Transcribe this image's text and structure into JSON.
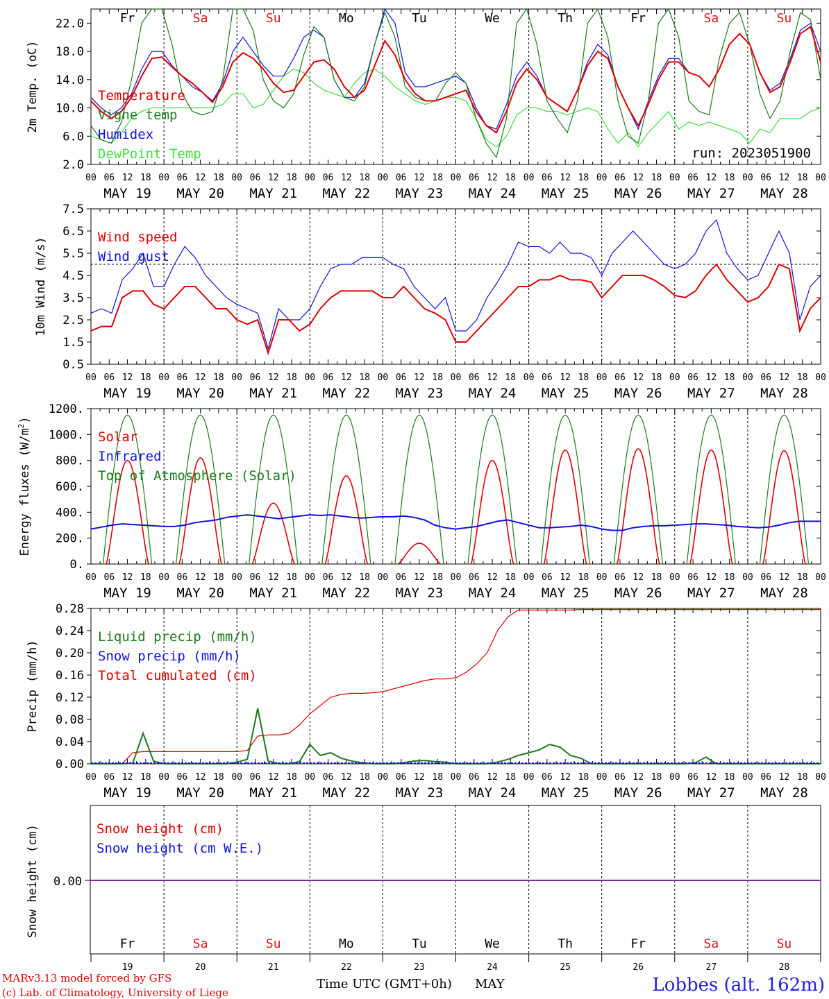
{
  "days": [
    "19",
    "20",
    "21",
    "22",
    "23",
    "24",
    "25",
    "26",
    "27",
    "28"
  ],
  "day_labels": [
    "MAY 19",
    "MAY 20",
    "MAY 21",
    "MAY 22",
    "MAY 23",
    "MAY 24",
    "MAY 25",
    "MAY 26",
    "MAY 27",
    "MAY 28"
  ],
  "weekdays": [
    "Fr",
    "Sa",
    "Su",
    "Mo",
    "Tu",
    "We",
    "Th",
    "Fr",
    "Sa",
    "Su"
  ],
  "weekend_color": "#e01010",
  "weekday_color": "#000000",
  "hour_ticks": [
    "00",
    "06",
    "12",
    "18"
  ],
  "x_end_tick": "00",
  "run_label": "run: 2023051900",
  "footer": {
    "model": "MARv3.13 model forced by GFS",
    "lab": "(c) Lab. of Climatology, University of Liege",
    "axis_title": "Time UTC (GMT+0h)",
    "month": "MAY",
    "station": "Lobbes (alt. 162m)"
  },
  "chart_data": [
    {
      "type": "line",
      "ylabel": "2m Temp. (oC)",
      "ylim": [
        2.0,
        24.0
      ],
      "yticks": [
        2.0,
        6.0,
        10.0,
        14.0,
        18.0,
        22.0
      ],
      "tick_decimals": 1,
      "x_hours_step": 6,
      "series": [
        {
          "name": "Temperature",
          "color": "#e00000",
          "values": [
            11.0,
            9.5,
            8.5,
            9.5,
            11.5,
            14.5,
            17.0,
            17.2,
            15.8,
            14.5,
            13.5,
            12.2,
            10.8,
            13.0,
            16.5,
            17.8,
            17.0,
            15.5,
            13.5,
            12.2,
            12.5,
            14.5,
            16.5,
            16.8,
            15.5,
            13.0,
            11.5,
            12.5,
            16.0,
            19.5,
            17.5,
            14.0,
            12.0,
            11.0,
            11.0,
            11.5,
            12.0,
            12.5,
            9.5,
            7.5,
            6.5,
            9.5,
            13.5,
            15.5,
            14.0,
            11.5,
            10.5,
            9.5,
            12.5,
            16.0,
            18.0,
            17.0,
            13.0,
            10.0,
            7.5,
            10.5,
            14.0,
            16.5,
            16.5,
            15.0,
            14.5,
            13.0,
            15.5,
            19.0,
            20.5,
            19.0,
            15.0,
            12.2,
            13.0,
            16.5,
            20.5,
            21.5,
            16.5
          ]
        },
        {
          "name": "Vigne temp",
          "color": "#1a7a1a",
          "values": [
            7.5,
            5.5,
            5.0,
            8.0,
            14.0,
            22.0,
            26.0,
            26.0,
            19.0,
            12.0,
            9.5,
            9.0,
            9.5,
            14.0,
            24.0,
            27.0,
            21.0,
            14.0,
            11.0,
            10.0,
            12.0,
            17.5,
            21.5,
            20.0,
            14.0,
            11.5,
            11.0,
            13.0,
            19.0,
            23.5,
            20.0,
            13.0,
            11.5,
            11.0,
            11.0,
            13.5,
            15.0,
            13.5,
            8.5,
            5.0,
            3.0,
            8.5,
            22.0,
            26.0,
            19.0,
            11.0,
            8.5,
            6.5,
            11.0,
            22.0,
            26.0,
            20.0,
            11.0,
            6.0,
            5.0,
            11.0,
            22.0,
            26.0,
            20.0,
            11.0,
            9.5,
            9.0,
            17.0,
            22.0,
            23.5,
            19.0,
            12.0,
            8.5,
            11.0,
            18.0,
            23.5,
            22.5,
            14.0
          ]
        },
        {
          "name": "Humidex",
          "color": "#1010e0",
          "values": [
            11.5,
            10.0,
            9.0,
            10.0,
            12.0,
            15.5,
            18.0,
            18.0,
            16.0,
            14.5,
            13.0,
            12.2,
            11.0,
            13.5,
            18.0,
            20.0,
            18.0,
            16.0,
            14.5,
            14.5,
            17.0,
            20.0,
            21.0,
            20.0,
            14.0,
            11.5,
            11.5,
            13.5,
            19.0,
            24.0,
            22.0,
            15.0,
            13.0,
            13.0,
            13.5,
            14.0,
            14.5,
            13.5,
            10.0,
            7.5,
            7.0,
            10.5,
            14.5,
            16.5,
            14.5,
            11.5,
            10.5,
            9.5,
            12.5,
            16.5,
            19.0,
            17.5,
            13.0,
            10.0,
            7.0,
            11.0,
            14.5,
            17.0,
            17.0,
            15.0,
            14.5,
            13.0,
            15.5,
            19.0,
            20.5,
            19.0,
            15.0,
            12.5,
            13.5,
            17.0,
            21.0,
            22.0,
            18.0
          ]
        },
        {
          "name": "DewPoint Temp",
          "color": "#40e040",
          "values": [
            6.0,
            5.5,
            5.0,
            6.5,
            8.5,
            9.5,
            10.0,
            10.0,
            10.0,
            10.0,
            10.0,
            10.0,
            10.0,
            10.5,
            12.0,
            12.0,
            10.0,
            10.5,
            12.5,
            14.5,
            15.5,
            15.0,
            13.5,
            12.5,
            12.0,
            11.5,
            13.5,
            15.0,
            15.5,
            14.5,
            13.0,
            12.0,
            11.0,
            10.5,
            11.0,
            11.5,
            11.5,
            11.0,
            8.5,
            5.5,
            4.5,
            6.0,
            9.0,
            10.0,
            10.0,
            9.5,
            9.5,
            9.0,
            9.5,
            10.0,
            9.5,
            7.0,
            5.0,
            6.5,
            4.5,
            6.5,
            8.0,
            9.5,
            7.0,
            8.0,
            7.5,
            8.0,
            7.5,
            7.0,
            6.5,
            5.0,
            7.0,
            6.5,
            8.5,
            8.5,
            8.5,
            9.5,
            10.0
          ]
        }
      ]
    },
    {
      "type": "line",
      "ylabel": "10m Wind (m/s)",
      "ylim": [
        0.5,
        7.5
      ],
      "yticks": [
        0.5,
        1.5,
        2.5,
        3.5,
        4.5,
        5.5,
        6.5,
        7.5
      ],
      "tick_decimals": 1,
      "ref_line": 5.0,
      "x_hours_step": 6,
      "series": [
        {
          "name": "Wind speed",
          "color": "#e00000",
          "values": [
            2.0,
            2.2,
            2.2,
            3.5,
            3.8,
            3.8,
            3.2,
            3.0,
            3.5,
            4.0,
            4.0,
            3.5,
            3.0,
            3.0,
            2.5,
            2.3,
            2.5,
            1.0,
            2.5,
            2.5,
            2.0,
            2.3,
            3.0,
            3.5,
            3.8,
            3.8,
            3.8,
            3.8,
            3.5,
            3.5,
            4.0,
            3.5,
            3.0,
            2.8,
            2.5,
            1.5,
            1.5,
            2.0,
            2.5,
            3.0,
            3.5,
            4.0,
            4.0,
            4.3,
            4.3,
            4.5,
            4.3,
            4.3,
            4.2,
            3.5,
            4.0,
            4.5,
            4.5,
            4.5,
            4.3,
            4.0,
            3.6,
            3.5,
            3.8,
            4.5,
            5.0,
            4.3,
            3.8,
            3.3,
            3.5,
            4.0,
            5.0,
            4.8,
            2.0,
            3.0,
            3.5
          ]
        },
        {
          "name": "Wind gust",
          "color": "#1010e0",
          "values": [
            2.8,
            3.0,
            2.8,
            4.3,
            4.8,
            5.5,
            4.0,
            4.0,
            5.0,
            5.8,
            5.3,
            4.5,
            4.0,
            3.5,
            3.2,
            3.0,
            2.8,
            1.2,
            3.0,
            2.5,
            2.5,
            3.0,
            4.0,
            4.8,
            5.0,
            5.0,
            5.3,
            5.3,
            5.3,
            5.0,
            4.8,
            4.0,
            3.5,
            3.0,
            3.5,
            2.0,
            2.0,
            2.5,
            3.5,
            4.2,
            5.0,
            6.0,
            5.8,
            5.8,
            5.5,
            6.0,
            5.5,
            5.5,
            5.3,
            4.5,
            5.5,
            6.0,
            6.5,
            6.0,
            5.5,
            5.0,
            4.8,
            5.0,
            5.5,
            6.5,
            7.0,
            5.5,
            4.8,
            4.3,
            4.5,
            5.5,
            6.5,
            5.5,
            2.5,
            4.0,
            4.5
          ]
        }
      ]
    },
    {
      "type": "line",
      "ylabel": "Energy fluxes (W/m2)",
      "ylim": [
        0,
        1200
      ],
      "yticks": [
        0,
        200,
        400,
        600,
        800,
        1000,
        1200
      ],
      "tick_decimals": 0,
      "tick_suffix": ".",
      "series": [
        {
          "name": "Solar",
          "color": "#e00000",
          "peaks": [
            800,
            820,
            470,
            680,
            160,
            800,
            880,
            890,
            880,
            875
          ]
        },
        {
          "name": "Infrared",
          "color": "#1010e0",
          "values": [
            270,
            285,
            300,
            310,
            305,
            300,
            295,
            290,
            290,
            300,
            320,
            330,
            340,
            360,
            370,
            380,
            370,
            360,
            350,
            360,
            370,
            380,
            375,
            380,
            370,
            360,
            355,
            360,
            365,
            365,
            370,
            360,
            340,
            300,
            280,
            270,
            280,
            290,
            310,
            330,
            340,
            320,
            300,
            280,
            280,
            285,
            290,
            300,
            290,
            270,
            260,
            260,
            280,
            290,
            295,
            295,
            300,
            305,
            310,
            310,
            305,
            300,
            290,
            285,
            280,
            285,
            300,
            320,
            330,
            330,
            330
          ]
        },
        {
          "name": "Top of Atmosphere (Solar)",
          "color": "#1a7a1a",
          "peak": 1150
        }
      ]
    },
    {
      "type": "line",
      "ylabel": "Precip (mm/h)",
      "ylim": [
        0.0,
        0.28
      ],
      "yticks": [
        0.0,
        0.04,
        0.08,
        0.12,
        0.16,
        0.2,
        0.24,
        0.28
      ],
      "tick_decimals": 2,
      "series": [
        {
          "name": "Liquid precip (mm/h)",
          "color": "#1a7a1a",
          "values": [
            0,
            0,
            0,
            0,
            0.001,
            0.055,
            0.005,
            0,
            0,
            0,
            0,
            0,
            0,
            0,
            0.003,
            0.008,
            0.1,
            0.005,
            0,
            0,
            0.004,
            0.035,
            0.015,
            0.02,
            0.01,
            0.005,
            0.002,
            0,
            0,
            0,
            0.002,
            0.005,
            0.006,
            0.004,
            0.003,
            0,
            0,
            0,
            0,
            0.003,
            0.008,
            0.015,
            0.02,
            0.025,
            0.035,
            0.03,
            0.015,
            0.01,
            0,
            0,
            0,
            0,
            0,
            0,
            0,
            0,
            0,
            0,
            0.002,
            0.012,
            0,
            0,
            0,
            0,
            0,
            0,
            0,
            0,
            0,
            0,
            0
          ]
        },
        {
          "name": "Snow precip (mm/h)",
          "color": "#1010e0",
          "values": []
        },
        {
          "name": "Total cumulated (cm)",
          "color": "#e00000",
          "values": [
            0,
            0,
            0,
            0,
            0.02,
            0.022,
            0.022,
            0.022,
            0.022,
            0.022,
            0.022,
            0.022,
            0.022,
            0.022,
            0.022,
            0.024,
            0.05,
            0.052,
            0.052,
            0.055,
            0.07,
            0.09,
            0.105,
            0.12,
            0.125,
            0.127,
            0.127,
            0.128,
            0.13,
            0.135,
            0.14,
            0.145,
            0.15,
            0.153,
            0.153,
            0.155,
            0.165,
            0.18,
            0.2,
            0.24,
            0.265,
            0.277,
            0.277,
            0.277,
            0.277,
            0.277,
            0.277,
            0.278,
            0.278,
            0.278,
            0.278,
            0.278,
            0.278,
            0.278,
            0.278,
            0.278,
            0.278,
            0.278,
            0.278,
            0.278,
            0.278,
            0.278,
            0.278,
            0.278,
            0.278,
            0.278,
            0.278,
            0.278,
            0.278,
            0.278,
            0.278
          ]
        }
      ]
    },
    {
      "type": "line",
      "ylabel": "Snow height (cm)",
      "ylim": [
        -1,
        1
      ],
      "yticks": [
        0.0
      ],
      "tick_decimals": 2,
      "series": [
        {
          "name": "Snow height (cm)",
          "color": "#e00000",
          "values": [
            0,
            0
          ]
        },
        {
          "name": "Snow height (cm W.E.)",
          "color": "#1010e0",
          "values": [
            0,
            0
          ]
        }
      ]
    }
  ]
}
